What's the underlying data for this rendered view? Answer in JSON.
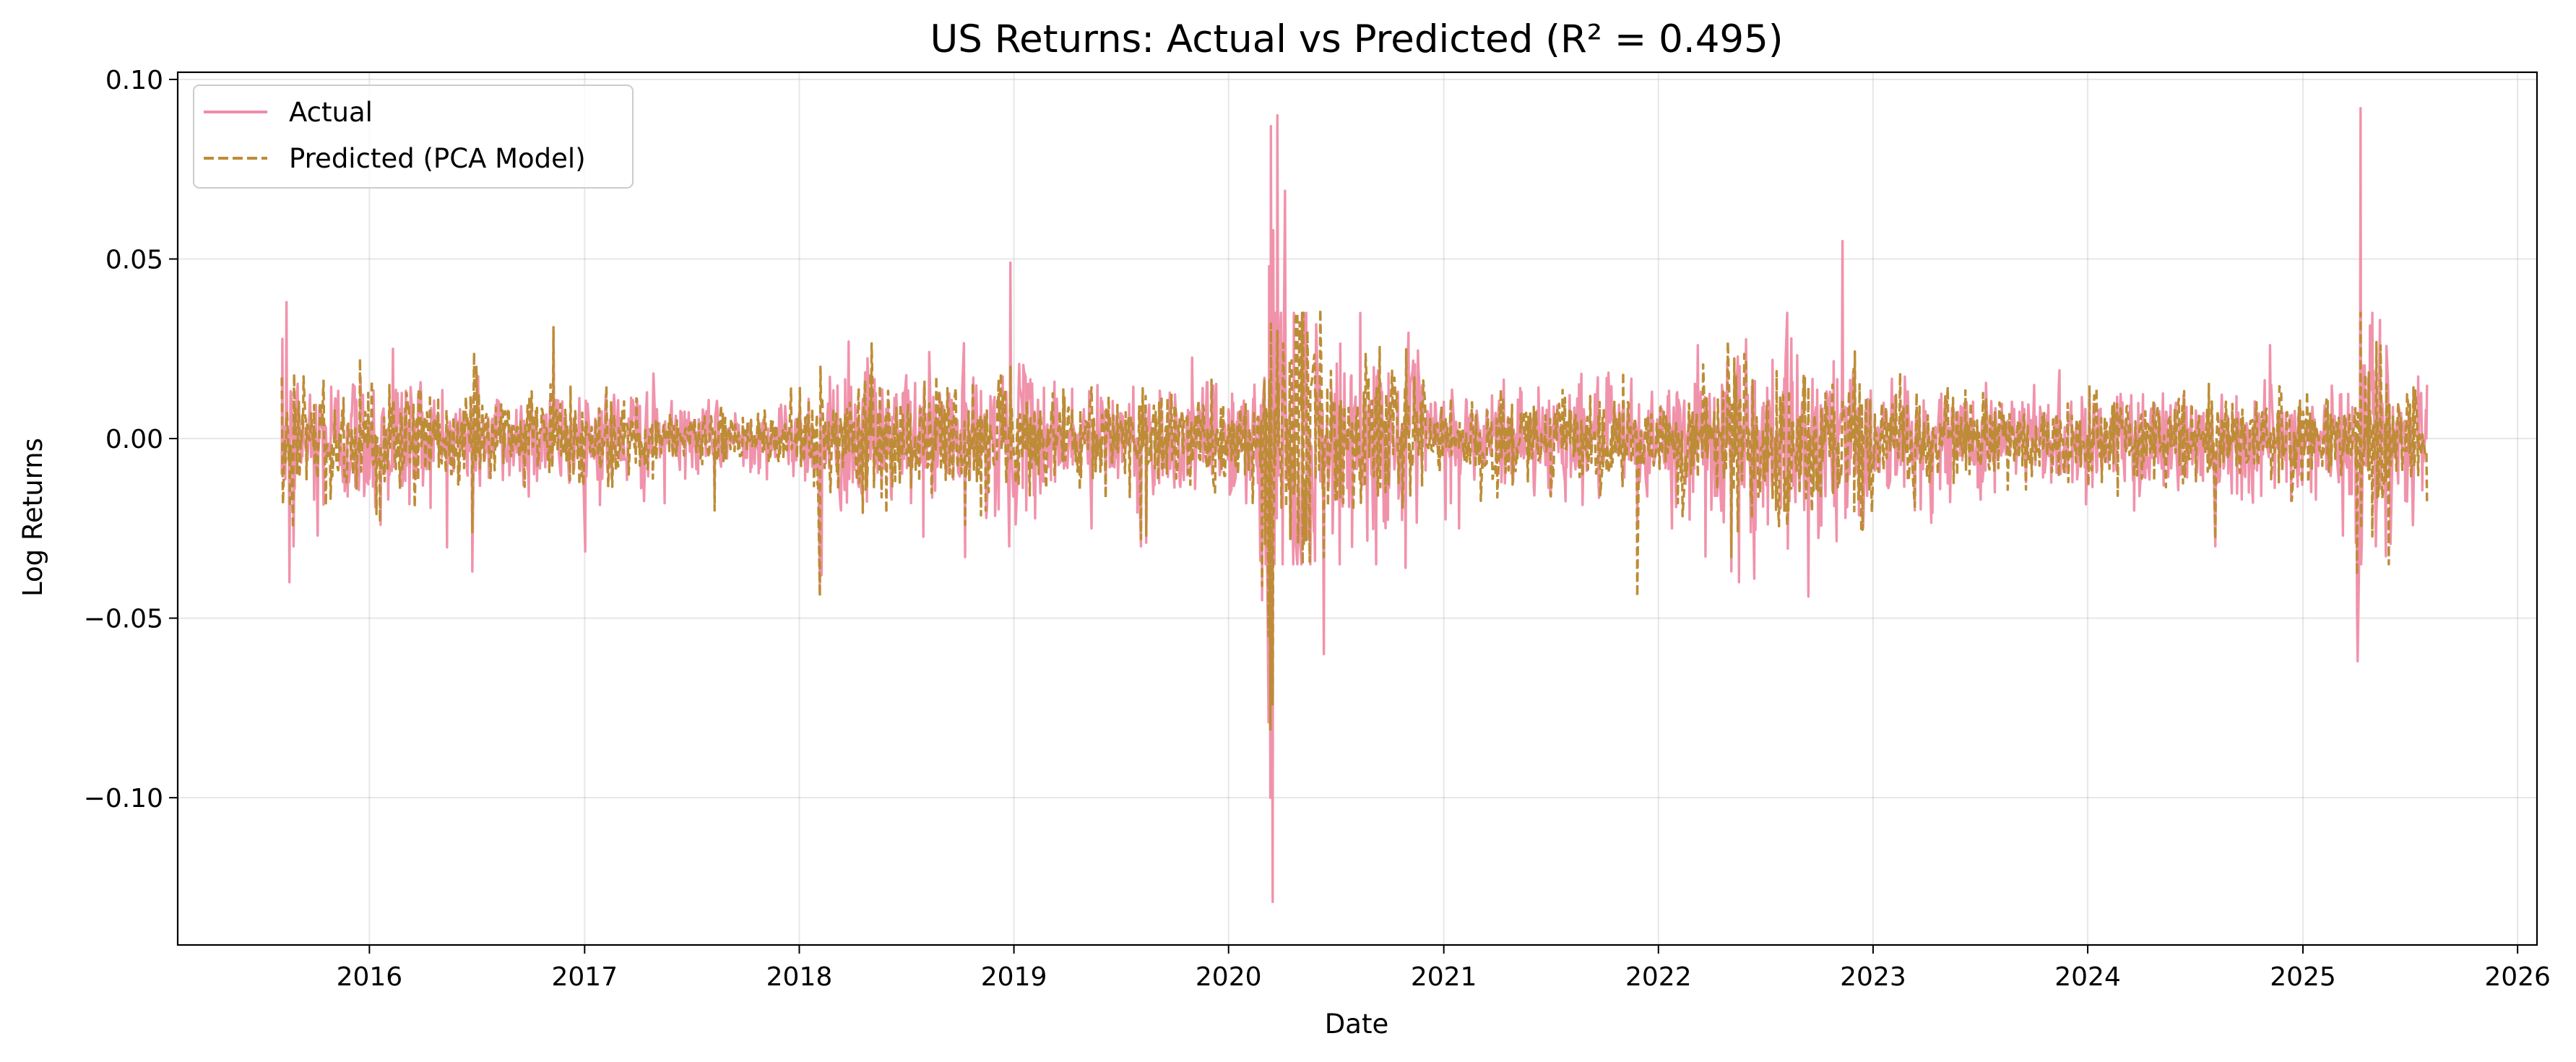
{
  "chart_data": {
    "type": "line",
    "title": "US Returns: Actual vs Predicted (R² = 0.495)",
    "xlabel": "Date",
    "ylabel": "Log Returns",
    "x_range": [
      "2015-08-05",
      "2025-07-31"
    ],
    "xlim": [
      "2015-02-09",
      "2026-02-03"
    ],
    "ylim": [
      -0.141,
      0.102
    ],
    "x_ticks": [
      "2016",
      "2017",
      "2018",
      "2019",
      "2020",
      "2021",
      "2022",
      "2023",
      "2024",
      "2025",
      "2026"
    ],
    "y_ticks": [
      "0.10",
      "0.05",
      "0.00",
      "−0.05",
      "−0.10"
    ],
    "y_tick_values": [
      0.1,
      0.05,
      0.0,
      -0.05,
      -0.1
    ],
    "grid": true,
    "legend_position": "top-left",
    "series": [
      {
        "name": "Actual",
        "color": "#f08ca6",
        "style": "solid",
        "points": [
          [
            "2015-08-05",
            -0.01
          ],
          [
            "2015-08-13",
            0.038
          ],
          [
            "2015-08-18",
            -0.04
          ],
          [
            "2015-08-25",
            -0.03
          ],
          [
            "2015-10-05",
            -0.027
          ],
          [
            "2016-01-20",
            -0.024
          ],
          [
            "2016-02-10",
            0.025
          ],
          [
            "2016-06-24",
            -0.037
          ],
          [
            "2016-11-09",
            0.03
          ],
          [
            "2017-05-17",
            -0.018
          ],
          [
            "2017-08-10",
            -0.015
          ],
          [
            "2018-02-05",
            -0.041
          ],
          [
            "2018-02-08",
            -0.038
          ],
          [
            "2018-03-26",
            0.027
          ],
          [
            "2018-10-10",
            -0.033
          ],
          [
            "2018-12-24",
            -0.03
          ],
          [
            "2018-12-26",
            0.049
          ],
          [
            "2019-05-13",
            -0.025
          ],
          [
            "2019-08-05",
            -0.03
          ],
          [
            "2019-08-14",
            -0.029
          ],
          [
            "2020-01-31",
            -0.018
          ],
          [
            "2020-02-24",
            -0.034
          ],
          [
            "2020-02-27",
            -0.045
          ],
          [
            "2020-03-09",
            -0.079
          ],
          [
            "2020-03-10",
            0.048
          ],
          [
            "2020-03-12",
            -0.1
          ],
          [
            "2020-03-13",
            0.087
          ],
          [
            "2020-03-16",
            -0.129
          ],
          [
            "2020-03-17",
            0.058
          ],
          [
            "2020-03-24",
            0.09
          ],
          [
            "2020-04-06",
            0.069
          ],
          [
            "2020-06-11",
            -0.06
          ],
          [
            "2020-09-08",
            -0.035
          ],
          [
            "2020-10-28",
            -0.036
          ],
          [
            "2021-01-27",
            -0.025
          ],
          [
            "2021-11-26",
            -0.023
          ],
          [
            "2022-01-24",
            -0.025
          ],
          [
            "2022-03-09",
            0.026
          ],
          [
            "2022-05-05",
            -0.037
          ],
          [
            "2022-05-18",
            -0.04
          ],
          [
            "2022-06-13",
            -0.039
          ],
          [
            "2022-09-13",
            -0.044
          ],
          [
            "2022-11-10",
            0.055
          ],
          [
            "2022-12-15",
            -0.025
          ],
          [
            "2023-03-13",
            -0.02
          ],
          [
            "2023-11-14",
            0.019
          ],
          [
            "2024-08-05",
            -0.03
          ],
          [
            "2024-11-06",
            0.026
          ],
          [
            "2025-03-10",
            -0.027
          ],
          [
            "2025-04-03",
            -0.048
          ],
          [
            "2025-04-04",
            -0.062
          ],
          [
            "2025-04-09",
            0.092
          ],
          [
            "2025-04-10",
            -0.035
          ],
          [
            "2025-05-12",
            0.033
          ],
          [
            "2025-07-31",
            0.015
          ]
        ]
      },
      {
        "name": "Predicted (PCA Model)",
        "color": "#bd8c36",
        "style": "dashed",
        "points": [
          [
            "2015-08-05",
            0.017
          ],
          [
            "2015-08-24",
            -0.025
          ],
          [
            "2015-08-26",
            0.018
          ],
          [
            "2016-01-13",
            -0.021
          ],
          [
            "2016-06-24",
            -0.026
          ],
          [
            "2016-06-27",
            0.024
          ],
          [
            "2016-11-09",
            0.031
          ],
          [
            "2017-08-10",
            -0.02
          ],
          [
            "2018-02-05",
            -0.044
          ],
          [
            "2018-02-06",
            0.02
          ],
          [
            "2018-10-10",
            -0.024
          ],
          [
            "2018-12-26",
            0.02
          ],
          [
            "2019-08-05",
            -0.028
          ],
          [
            "2019-08-14",
            -0.027
          ],
          [
            "2020-02-27",
            -0.041
          ],
          [
            "2020-03-09",
            -0.055
          ],
          [
            "2020-03-12",
            -0.081
          ],
          [
            "2020-03-13",
            0.032
          ],
          [
            "2020-03-16",
            -0.074
          ],
          [
            "2020-03-24",
            0.03
          ],
          [
            "2020-06-05",
            0.036
          ],
          [
            "2020-06-11",
            -0.033
          ],
          [
            "2021-11-26",
            -0.044
          ],
          [
            "2022-04-29",
            0.027
          ],
          [
            "2022-05-05",
            -0.033
          ],
          [
            "2023-03-13",
            -0.019
          ],
          [
            "2024-08-05",
            -0.028
          ],
          [
            "2025-04-03",
            -0.038
          ],
          [
            "2025-04-09",
            0.035
          ],
          [
            "2025-04-10",
            -0.025
          ],
          [
            "2025-07-31",
            -0.018
          ]
        ]
      }
    ]
  }
}
